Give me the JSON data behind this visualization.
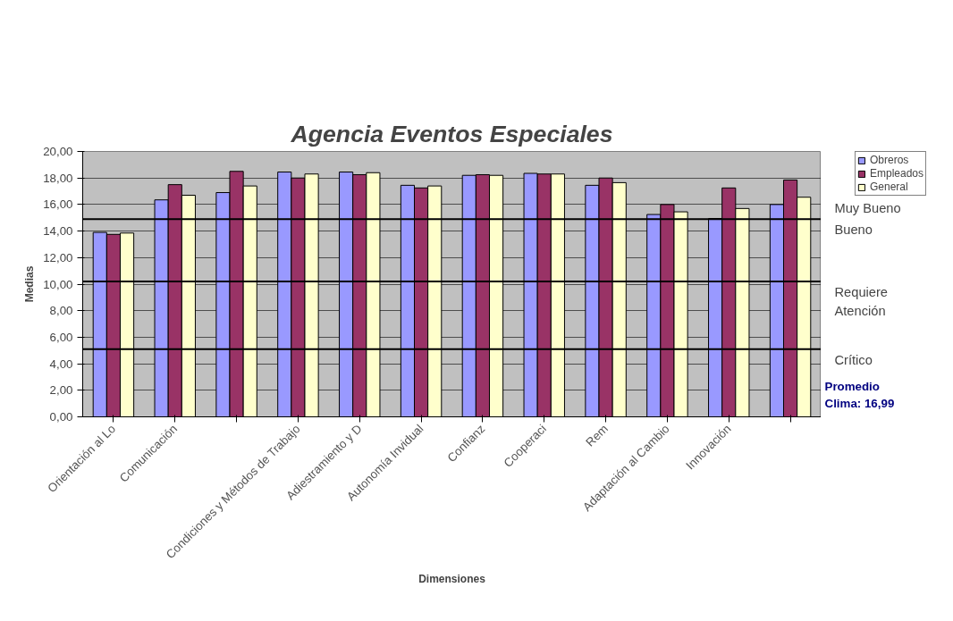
{
  "chart_data": {
    "type": "bar",
    "title": "Agencia Eventos Especiales",
    "xlabel": "Dimensiones",
    "ylabel": "Medias",
    "categories": [
      "Orientación al Lo",
      "Comunicación",
      null,
      "Condiciones y Métodos de Trabajo",
      "Adiestramiento y D",
      "Autonomía Invidual",
      "Confianz",
      "Cooperaci",
      "Rem",
      "Adaptación al Cambio",
      "Innovación",
      null
    ],
    "series": [
      {
        "name": "Obreros",
        "color": "#9999ff",
        "values": [
          13.9,
          16.35,
          16.9,
          18.45,
          18.45,
          17.45,
          18.2,
          18.35,
          17.45,
          15.25,
          14.95,
          16.0
        ]
      },
      {
        "name": "Empleados",
        "color": "#993366",
        "values": [
          13.75,
          17.5,
          18.5,
          18.0,
          18.25,
          17.25,
          18.25,
          18.3,
          18.0,
          16.0,
          17.25,
          17.85
        ]
      },
      {
        "name": "General",
        "color": "#ffffcc",
        "values": [
          13.85,
          16.7,
          17.4,
          18.3,
          18.4,
          17.4,
          18.2,
          18.3,
          17.65,
          15.45,
          15.7,
          16.55
        ]
      }
    ],
    "ylim": [
      0,
      20
    ],
    "yticks": [
      {
        "value": 0,
        "label": "0,00"
      },
      {
        "value": 2,
        "label": "2,00"
      },
      {
        "value": 4,
        "label": "4,00"
      },
      {
        "value": 6,
        "label": "6,00"
      },
      {
        "value": 8,
        "label": "8,00"
      },
      {
        "value": 10,
        "label": "10,00"
      },
      {
        "value": 12,
        "label": "12,00"
      },
      {
        "value": 14,
        "label": "14,00"
      },
      {
        "value": 16,
        "label": "16,00"
      },
      {
        "value": 18,
        "label": "18,00"
      },
      {
        "value": 20,
        "label": "20,00"
      }
    ],
    "ref_lines": [
      {
        "axis": "y",
        "value": 14.9,
        "color": "#000000"
      },
      {
        "axis": "y",
        "value": 10.2,
        "color": "#000000"
      },
      {
        "axis": "y",
        "value": 5.1,
        "color": "#000000"
      }
    ],
    "annotations": [
      "Muy Bueno",
      "Bueno",
      "Requiere Atención",
      "Crítico",
      "Promedio Clima: 16,99"
    ],
    "grid": "y",
    "legend": "top right"
  }
}
